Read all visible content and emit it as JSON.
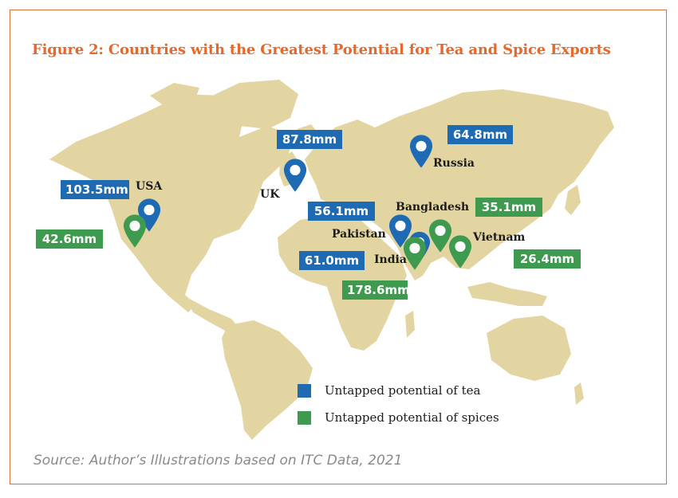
{
  "title": "Figure 2: Countries with the Greatest Potential for Tea and Spice Exports",
  "source": "Source: Author’s Illustrations based on ITC Data, 2021",
  "colors": {
    "tea": "#1f6bb3",
    "spices": "#3e9a4e",
    "land": "#e3d5a2",
    "title": "#e8682c"
  },
  "legend": {
    "tea_label": "Untapped potential of tea",
    "spices_label": "Untapped potential of spices"
  },
  "countries": {
    "usa": "USA",
    "uk": "UK",
    "russia": "Russia",
    "pakistan": "Pakistan",
    "bangladesh": "Bangladesh",
    "india": "India",
    "vietnam": "Vietnam"
  },
  "values": {
    "usa_tea": "103.5mm",
    "usa_spices": "42.6mm",
    "uk_tea": "87.8mm",
    "russia_tea": "64.8mm",
    "pakistan_tea": "56.1mm",
    "india_tea": "61.0mm",
    "india_spices": "178.6mm",
    "bangladesh_spices": "35.1mm",
    "vietnam_spices": "26.4mm"
  }
}
